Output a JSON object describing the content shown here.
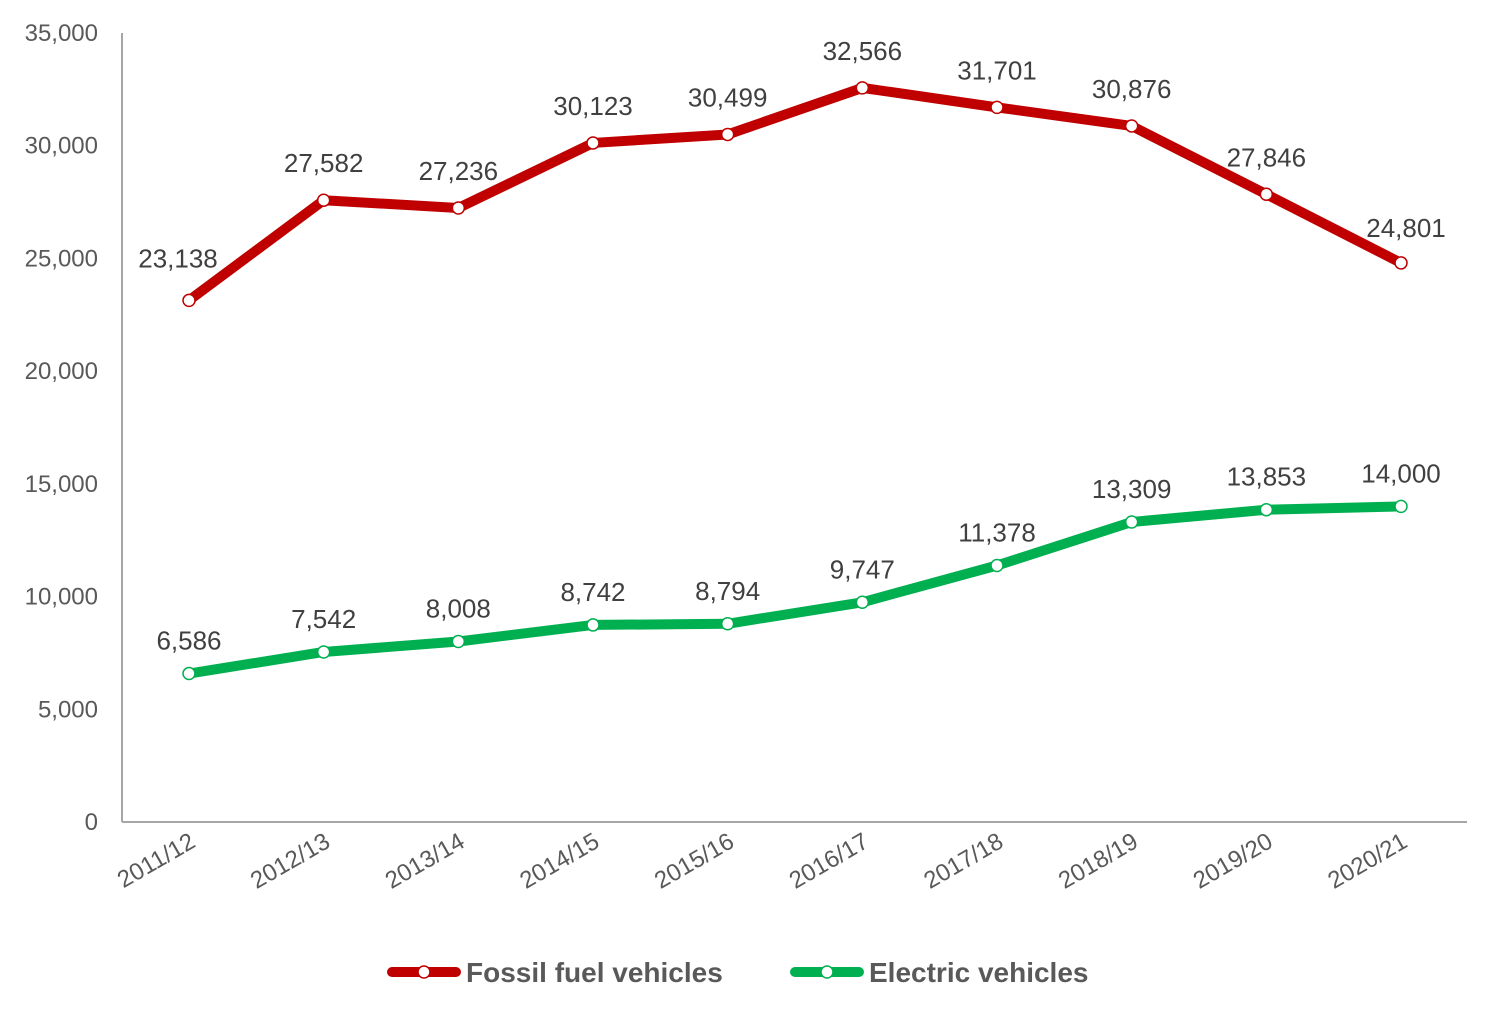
{
  "chart_data": {
    "type": "line",
    "title": "",
    "xlabel": "",
    "ylabel": "",
    "categories": [
      "2011/12",
      "2012/13",
      "2013/14",
      "2014/15",
      "2015/16",
      "2016/17",
      "2017/18",
      "2018/19",
      "2019/20",
      "2020/21"
    ],
    "ylim": [
      0,
      35000
    ],
    "yticks": [
      0,
      5000,
      10000,
      15000,
      20000,
      25000,
      30000,
      35000
    ],
    "ytick_labels": [
      "0",
      "5,000",
      "10,000",
      "15,000",
      "20,000",
      "25,000",
      "30,000",
      "35,000"
    ],
    "grid": false,
    "legend_position": "bottom",
    "series": [
      {
        "name": "Fossil fuel vehicles",
        "color": "#C00000",
        "values": [
          23138,
          27582,
          27236,
          30123,
          30499,
          32566,
          31701,
          30876,
          27846,
          24801
        ],
        "labels": [
          "23,138",
          "27,582",
          "27,236",
          "30,123",
          "30,499",
          "32,566",
          "31,701",
          "30,876",
          "27,846",
          "24,801"
        ]
      },
      {
        "name": "Electric vehicles",
        "color": "#00B050",
        "values": [
          6586,
          7542,
          8008,
          8742,
          8794,
          9747,
          11378,
          13309,
          13853,
          14000
        ],
        "labels": [
          "6,586",
          "7,542",
          "8,008",
          "8,742",
          "8,794",
          "9,747",
          "11,378",
          "13,309",
          "13,853",
          "14,000"
        ]
      }
    ]
  }
}
